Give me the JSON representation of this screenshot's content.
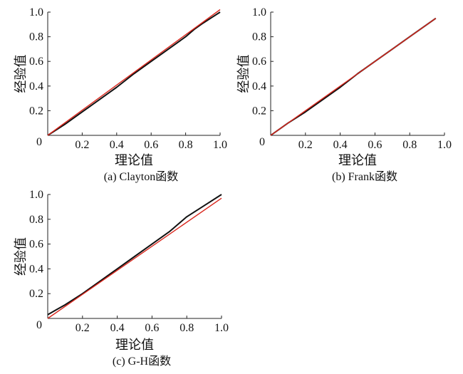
{
  "chart_data": [
    {
      "type": "line",
      "caption": "(a) Clayton函数",
      "xlabel": "理论值",
      "ylabel": "经验值",
      "xlim": [
        0,
        1.0
      ],
      "ylim": [
        0,
        1.0
      ],
      "xticks": [
        "0.2",
        "0.4",
        "0.6",
        "0.8",
        "1.0"
      ],
      "yticks": [
        "0.2",
        "0.4",
        "0.6",
        "0.8",
        "1.0"
      ],
      "origin_label": "0",
      "series": [
        {
          "color": "#111111",
          "x": [
            0,
            0.1,
            0.2,
            0.3,
            0.4,
            0.5,
            0.6,
            0.7,
            0.8,
            0.85,
            0.9,
            0.95,
            1.0
          ],
          "y": [
            0,
            0.09,
            0.19,
            0.29,
            0.39,
            0.5,
            0.6,
            0.7,
            0.8,
            0.86,
            0.91,
            0.955,
            1.0
          ]
        },
        {
          "color": "#d9261c",
          "x": [
            0,
            1.0
          ],
          "y": [
            0,
            1.02
          ]
        }
      ]
    },
    {
      "type": "line",
      "caption": "(b) Frank函数",
      "xlabel": "理论值",
      "ylabel": "经验值",
      "xlim": [
        0,
        1.0
      ],
      "ylim": [
        0,
        1.0
      ],
      "xticks": [
        "0.2",
        "0.4",
        "0.6",
        "0.8",
        "1.0"
      ],
      "yticks": [
        "0.2",
        "0.4",
        "0.6",
        "0.8",
        "1.0"
      ],
      "origin_label": "0",
      "series": [
        {
          "color": "#111111",
          "x": [
            0,
            0.1,
            0.2,
            0.3,
            0.4,
            0.5,
            0.6,
            0.7,
            0.8,
            0.9,
            0.95
          ],
          "y": [
            0,
            0.1,
            0.19,
            0.29,
            0.39,
            0.5,
            0.6,
            0.7,
            0.8,
            0.9,
            0.95
          ]
        },
        {
          "color": "#d9261c",
          "x": [
            0,
            0.95
          ],
          "y": [
            0,
            0.95
          ]
        }
      ]
    },
    {
      "type": "line",
      "caption": "(c) G-H函数",
      "xlabel": "理论值",
      "ylabel": "经验值",
      "xlim": [
        0,
        1.0
      ],
      "ylim": [
        0,
        1.0
      ],
      "xticks": [
        "0.2",
        "0.4",
        "0.6",
        "0.8",
        "1.0"
      ],
      "yticks": [
        "0.2",
        "0.4",
        "0.6",
        "0.8",
        "1.0"
      ],
      "origin_label": "0",
      "series": [
        {
          "color": "#111111",
          "x": [
            0,
            0.05,
            0.1,
            0.2,
            0.3,
            0.4,
            0.5,
            0.6,
            0.7,
            0.75,
            0.8,
            0.9,
            1.0
          ],
          "y": [
            0.03,
            0.07,
            0.11,
            0.2,
            0.3,
            0.4,
            0.5,
            0.6,
            0.7,
            0.76,
            0.82,
            0.91,
            1.0
          ]
        },
        {
          "color": "#d9261c",
          "x": [
            0,
            1.0
          ],
          "y": [
            0,
            0.97
          ]
        }
      ]
    }
  ]
}
